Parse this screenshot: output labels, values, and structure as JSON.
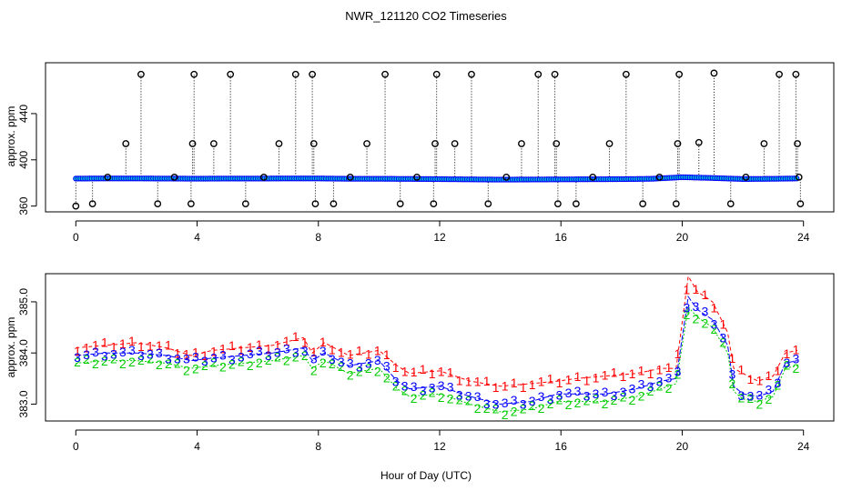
{
  "figure": {
    "title": "NWR_121120  CO2 Timeseries",
    "xlabel": "Hour of Day (UTC)"
  },
  "colors": {
    "series1": "#ff0000",
    "series2": "#00cc00",
    "series3": "#0000ff",
    "outlier": "#000000",
    "mean_fill": "#00cccc",
    "axis": "#000000"
  },
  "chart_data": [
    {
      "type": "scatter",
      "panel": "top",
      "title": "",
      "xlabel": "",
      "ylabel": "approx. ppm",
      "xlim": [
        -1,
        25
      ],
      "ylim": [
        355,
        484
      ],
      "xticks": [
        "0",
        "4",
        "8",
        "12",
        "16",
        "20",
        "24"
      ],
      "yticks": [
        "360",
        "400",
        "440"
      ],
      "xtick_values": [
        0,
        4,
        8,
        12,
        16,
        20,
        24
      ],
      "ytick_values": [
        360,
        400,
        440
      ],
      "baseline_note": "dense band of observations near 383 ppm (blue circles with cyan means)",
      "baseline": [
        [
          0,
          383.8
        ],
        [
          1,
          383.9
        ],
        [
          2,
          383.9
        ],
        [
          3,
          383.8
        ],
        [
          4,
          383.7
        ],
        [
          5,
          383.8
        ],
        [
          6,
          383.8
        ],
        [
          7,
          383.9
        ],
        [
          8,
          383.9
        ],
        [
          9,
          383.6
        ],
        [
          10,
          383.6
        ],
        [
          11,
          383.5
        ],
        [
          12,
          383.3
        ],
        [
          13,
          383.1
        ],
        [
          14,
          382.9
        ],
        [
          15,
          383.0
        ],
        [
          16,
          383.1
        ],
        [
          17,
          383.2
        ],
        [
          18,
          383.3
        ],
        [
          19,
          383.6
        ],
        [
          20,
          385.0
        ],
        [
          21,
          384.3
        ],
        [
          22,
          383.4
        ],
        [
          23,
          383.6
        ],
        [
          23.8,
          383.9
        ]
      ],
      "outliers": [
        {
          "x": 0.0,
          "y": 360,
          "base": 383
        },
        {
          "x": 0.55,
          "y": 362,
          "base": 383
        },
        {
          "x": 1.05,
          "y": 385,
          "base": 383
        },
        {
          "x": 1.65,
          "y": 414,
          "base": 383
        },
        {
          "x": 2.15,
          "y": 474,
          "base": 383
        },
        {
          "x": 2.7,
          "y": 362,
          "base": 383
        },
        {
          "x": 3.25,
          "y": 385,
          "base": 383
        },
        {
          "x": 3.8,
          "y": 362,
          "base": 383
        },
        {
          "x": 3.85,
          "y": 414,
          "base": 383
        },
        {
          "x": 3.9,
          "y": 474,
          "base": 383
        },
        {
          "x": 4.55,
          "y": 414,
          "base": 383
        },
        {
          "x": 5.1,
          "y": 474,
          "base": 383
        },
        {
          "x": 5.6,
          "y": 362,
          "base": 383
        },
        {
          "x": 6.2,
          "y": 385,
          "base": 383
        },
        {
          "x": 6.7,
          "y": 414,
          "base": 383
        },
        {
          "x": 7.25,
          "y": 474,
          "base": 383
        },
        {
          "x": 7.8,
          "y": 474,
          "base": 383
        },
        {
          "x": 7.85,
          "y": 414,
          "base": 383
        },
        {
          "x": 7.9,
          "y": 362,
          "base": 383
        },
        {
          "x": 8.5,
          "y": 362,
          "base": 383
        },
        {
          "x": 9.05,
          "y": 385,
          "base": 383
        },
        {
          "x": 9.6,
          "y": 414,
          "base": 383
        },
        {
          "x": 10.2,
          "y": 474,
          "base": 383
        },
        {
          "x": 10.7,
          "y": 362,
          "base": 383
        },
        {
          "x": 11.25,
          "y": 385,
          "base": 383
        },
        {
          "x": 11.8,
          "y": 362,
          "base": 383
        },
        {
          "x": 11.85,
          "y": 414,
          "base": 383
        },
        {
          "x": 11.9,
          "y": 474,
          "base": 383
        },
        {
          "x": 12.5,
          "y": 414,
          "base": 383
        },
        {
          "x": 13.05,
          "y": 474,
          "base": 383
        },
        {
          "x": 13.6,
          "y": 362,
          "base": 383
        },
        {
          "x": 14.2,
          "y": 385,
          "base": 383
        },
        {
          "x": 14.7,
          "y": 414,
          "base": 383
        },
        {
          "x": 15.25,
          "y": 474,
          "base": 383
        },
        {
          "x": 15.8,
          "y": 474,
          "base": 383
        },
        {
          "x": 15.85,
          "y": 414,
          "base": 383
        },
        {
          "x": 15.9,
          "y": 362,
          "base": 383
        },
        {
          "x": 16.5,
          "y": 362,
          "base": 383
        },
        {
          "x": 17.05,
          "y": 385,
          "base": 383
        },
        {
          "x": 17.6,
          "y": 414,
          "base": 383
        },
        {
          "x": 18.15,
          "y": 474,
          "base": 383
        },
        {
          "x": 18.7,
          "y": 362,
          "base": 383
        },
        {
          "x": 19.25,
          "y": 385,
          "base": 383
        },
        {
          "x": 19.8,
          "y": 362,
          "base": 383
        },
        {
          "x": 19.85,
          "y": 414,
          "base": 383
        },
        {
          "x": 19.9,
          "y": 474,
          "base": 383
        },
        {
          "x": 20.55,
          "y": 415,
          "base": 385
        },
        {
          "x": 21.05,
          "y": 475,
          "base": 385
        },
        {
          "x": 21.6,
          "y": 362,
          "base": 383
        },
        {
          "x": 22.1,
          "y": 385,
          "base": 383
        },
        {
          "x": 22.7,
          "y": 414,
          "base": 383
        },
        {
          "x": 23.2,
          "y": 474,
          "base": 383
        },
        {
          "x": 23.75,
          "y": 474,
          "base": 383
        },
        {
          "x": 23.8,
          "y": 414,
          "base": 383
        },
        {
          "x": 23.85,
          "y": 385,
          "base": 383
        },
        {
          "x": 23.9,
          "y": 362,
          "base": 383
        }
      ]
    },
    {
      "type": "line",
      "panel": "bottom",
      "title": "",
      "xlabel": "Hour of Day (UTC)",
      "ylabel": "approx. ppm",
      "xlim": [
        -1,
        25
      ],
      "ylim": [
        382.67,
        385.55
      ],
      "xticks": [
        "0",
        "4",
        "8",
        "12",
        "16",
        "20",
        "24"
      ],
      "yticks": [
        "383.0",
        "384.0",
        "385.0"
      ],
      "xtick_values": [
        0,
        4,
        8,
        12,
        16,
        20,
        24
      ],
      "ytick_values": [
        383.0,
        384.0,
        385.0
      ],
      "series": [
        {
          "name": "1",
          "color": "#ff0000",
          "x": [
            0,
            1,
            2,
            3,
            3.8,
            4.5,
            5.5,
            6.5,
            7.5,
            7.8,
            8.2,
            9,
            10,
            10.6,
            11,
            12,
            12.5,
            13,
            14,
            15,
            15.9,
            16.5,
            17.5,
            18.5,
            19.3,
            19.8,
            20.2,
            20.5,
            21,
            21.5,
            21.7,
            22,
            22.5,
            23,
            23.4,
            23.8
          ],
          "values": [
            384.1,
            384.15,
            384.2,
            384.1,
            383.95,
            384.05,
            384.1,
            384.15,
            384.3,
            384.0,
            384.2,
            383.95,
            384.05,
            383.75,
            383.6,
            383.65,
            383.55,
            383.45,
            383.35,
            383.4,
            383.45,
            383.5,
            383.55,
            383.6,
            383.7,
            383.7,
            385.5,
            385.2,
            385.0,
            384.4,
            383.7,
            383.6,
            383.45,
            383.55,
            384.0,
            384.05
          ]
        },
        {
          "name": "2",
          "color": "#00cc00",
          "x": [
            0,
            1,
            2,
            3,
            3.8,
            4.5,
            5.5,
            6.5,
            7.5,
            7.8,
            8.2,
            9,
            10,
            10.6,
            11,
            12,
            12.5,
            13,
            14,
            15,
            15.9,
            16.5,
            17.5,
            18.5,
            19.3,
            19.8,
            20.2,
            20.5,
            21,
            21.5,
            21.7,
            22,
            22.5,
            23,
            23.4,
            23.8
          ],
          "values": [
            383.8,
            383.85,
            383.85,
            383.8,
            383.7,
            383.75,
            383.8,
            383.85,
            383.95,
            383.7,
            383.85,
            383.6,
            383.7,
            383.3,
            383.15,
            383.2,
            383.1,
            383.0,
            382.85,
            382.9,
            383.05,
            383.05,
            383.05,
            383.15,
            383.3,
            383.4,
            384.9,
            384.7,
            384.5,
            384.0,
            383.25,
            383.1,
            383.05,
            383.15,
            383.7,
            383.75
          ]
        },
        {
          "name": "3",
          "color": "#0000ff",
          "x": [
            0,
            1,
            2,
            3,
            3.8,
            4.5,
            5.5,
            6.5,
            7.5,
            7.8,
            8.2,
            9,
            10,
            10.6,
            11,
            12,
            12.5,
            13,
            14,
            15,
            15.9,
            16.5,
            17.5,
            18.5,
            19.3,
            19.8,
            20.2,
            20.5,
            21,
            21.5,
            21.7,
            22,
            22.5,
            23,
            23.4,
            23.8
          ],
          "values": [
            383.95,
            384.0,
            384.0,
            383.95,
            383.85,
            383.9,
            383.95,
            384.0,
            384.1,
            383.85,
            384.0,
            383.75,
            383.85,
            383.45,
            383.3,
            383.35,
            383.25,
            383.15,
            383.0,
            383.05,
            383.2,
            383.2,
            383.2,
            383.3,
            383.45,
            383.5,
            385.1,
            384.85,
            384.65,
            384.15,
            383.35,
            383.2,
            383.15,
            383.25,
            383.8,
            383.85
          ]
        }
      ]
    }
  ]
}
